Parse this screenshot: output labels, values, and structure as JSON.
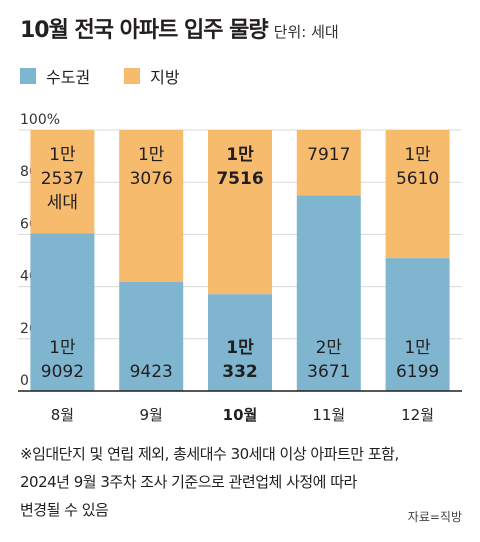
{
  "header": {
    "title": "10월 전국 아파트 입주 물량",
    "unit": "단위: 세대"
  },
  "colors": {
    "capital": "#7fb5cf",
    "region": "#f7bb6e",
    "axis": "#231f20",
    "grid": "#d9d9d9"
  },
  "footnote": {
    "line1": "※임대단지 및 연립 제외, 총세대수 30세대 이상 아파트만 포함,",
    "line2": "2024년 9월 3주차 조사 기준으로 관련업체 사정에 따라",
    "line3": "변경될 수 있음"
  },
  "source": "자료=직방",
  "chart_data": {
    "type": "bar",
    "stacked": true,
    "normalized": true,
    "categories": [
      "8월",
      "9월",
      "10월",
      "11월",
      "12월"
    ],
    "highlight_index": 2,
    "ylim": [
      0,
      100
    ],
    "yticks": [
      0,
      20,
      40,
      60,
      80,
      100
    ],
    "ytick_labels": [
      "0",
      "20",
      "40",
      "60",
      "80",
      "100%"
    ],
    "legend": {
      "position": "top-left"
    },
    "series": [
      {
        "name": "수도권",
        "values": [
          19092,
          9423,
          10332,
          23671,
          16199
        ],
        "labels": [
          [
            "1만",
            "9092"
          ],
          [
            "9423"
          ],
          [
            "1만",
            "332"
          ],
          [
            "2만",
            "3671"
          ],
          [
            "1만",
            "6199"
          ]
        ]
      },
      {
        "name": "지방",
        "values": [
          12537,
          13076,
          17516,
          7917,
          15610
        ],
        "labels": [
          [
            "1만",
            "2537",
            "세대"
          ],
          [
            "1만",
            "3076"
          ],
          [
            "1만",
            "7516"
          ],
          [
            "7917"
          ],
          [
            "1만",
            "5610"
          ]
        ]
      }
    ]
  }
}
